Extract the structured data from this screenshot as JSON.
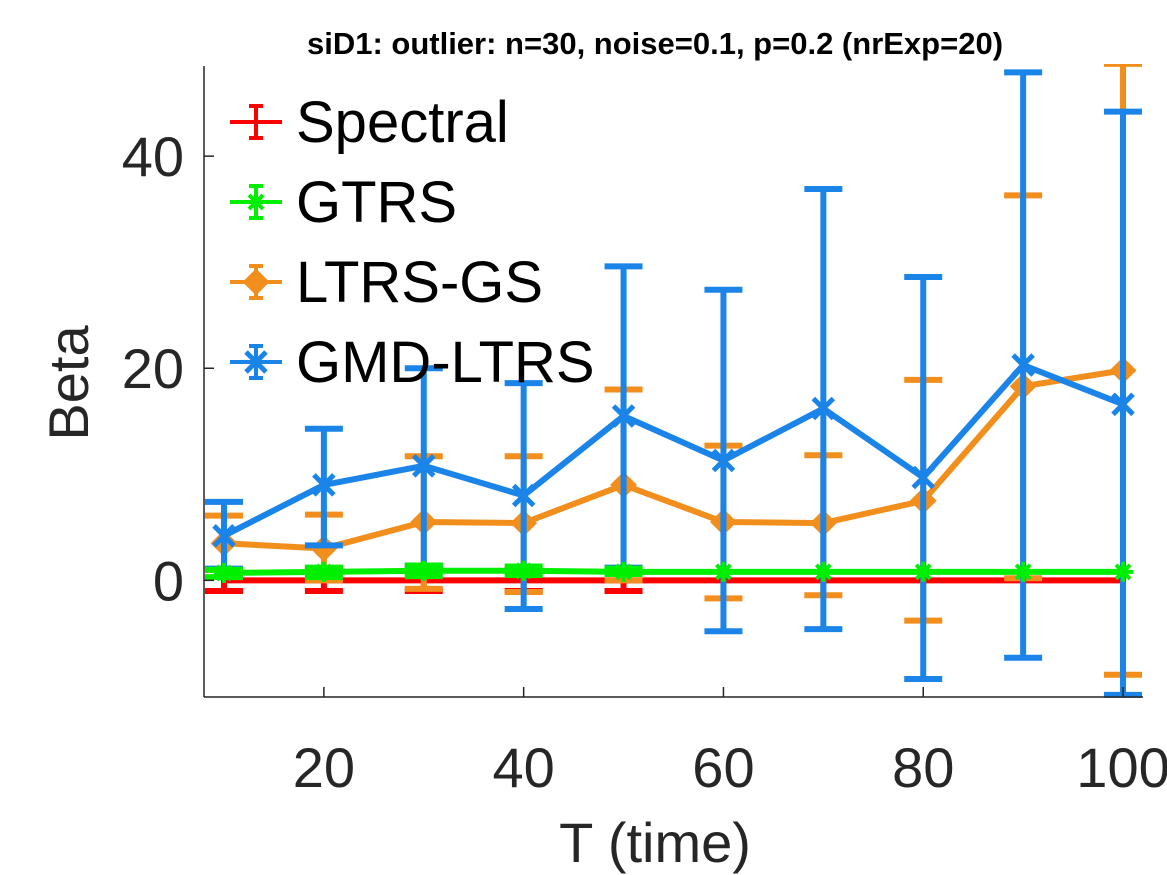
{
  "chart_data": {
    "type": "line",
    "title": "siD1: outlier: n=30, noise=0.1, p=0.2 (nrExp=20)",
    "xlabel": "T (time)",
    "ylabel": "Beta",
    "xlim": [
      8,
      102
    ],
    "ylim": [
      -11,
      48.5
    ],
    "xticks": [
      20,
      40,
      60,
      80,
      100
    ],
    "yticks": [
      0,
      20,
      40
    ],
    "grid": false,
    "legend_position": "top-left",
    "x": [
      10,
      20,
      30,
      40,
      50,
      60,
      70,
      80,
      90,
      100
    ],
    "series": [
      {
        "name": "Spectral",
        "color": "#ff0000",
        "marker": "none",
        "values": [
          0,
          0,
          0,
          0,
          0,
          0,
          0,
          0,
          0,
          0
        ],
        "err_low": [
          -1,
          -1,
          -1,
          -1,
          -1,
          0,
          0,
          0,
          0,
          0
        ],
        "err_high": [
          1,
          1,
          1,
          1,
          1,
          0,
          0,
          0,
          0,
          0
        ]
      },
      {
        "name": "GTRS",
        "color": "#00ee00",
        "marker": "star",
        "values": [
          0.7,
          0.8,
          0.9,
          0.9,
          0.8,
          0.8,
          0.8,
          0.8,
          0.8,
          0.8
        ],
        "err_low": [
          0.3,
          0.3,
          0.4,
          0.5,
          0.6,
          0.8,
          0.8,
          0.8,
          0.8,
          0.8
        ],
        "err_high": [
          1.0,
          1.2,
          1.4,
          1.3,
          1.1,
          0.8,
          0.8,
          0.8,
          0.8,
          0.8
        ]
      },
      {
        "name": "LTRS-GS",
        "color": "#f28e1c",
        "marker": "diamond",
        "values": [
          3.5,
          3.0,
          5.5,
          5.4,
          9.0,
          5.5,
          5.4,
          7.5,
          18.3,
          19.8
        ],
        "err_low": [
          1.0,
          0.0,
          -0.8,
          -1.1,
          0.0,
          -1.7,
          -1.4,
          -3.8,
          0.2,
          -8.9
        ],
        "err_high": [
          6.1,
          6.2,
          11.7,
          11.7,
          18.0,
          12.7,
          11.8,
          18.9,
          36.3,
          48.7
        ]
      },
      {
        "name": "GMD-LTRS",
        "color": "#1a84e8",
        "marker": "x",
        "values": [
          4.2,
          9.0,
          10.8,
          8.0,
          15.5,
          11.3,
          16.2,
          9.7,
          20.3,
          16.6
        ],
        "err_low": [
          1.1,
          3.3,
          1.4,
          -2.7,
          1.2,
          -4.8,
          -4.6,
          -9.3,
          -7.3,
          -10.8
        ],
        "err_high": [
          7.4,
          14.3,
          20.0,
          18.6,
          29.6,
          27.4,
          36.9,
          28.6,
          47.9,
          44.2
        ]
      }
    ]
  }
}
